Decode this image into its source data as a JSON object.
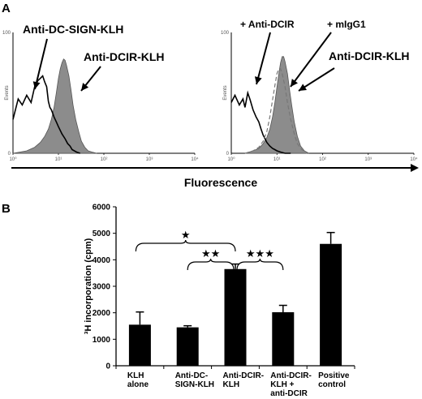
{
  "panel_a_letter": "A",
  "panel_b_letter": "B",
  "chart_data": [
    {
      "type": "area",
      "panel": "A-left",
      "ylabel": "Events",
      "xlabel": "",
      "ylim": [
        0,
        100
      ],
      "y_ticks": [
        "0",
        "100"
      ],
      "x_ticks": [
        "10⁰",
        "10¹",
        "10²",
        "10³",
        "10⁴"
      ],
      "x_tick_values": [
        1,
        10,
        100,
        1000,
        10000
      ],
      "xscale": "log",
      "series": [
        {
          "name": "Anti-DC-SIGN-KLH",
          "style": "outline",
          "x": [
            1,
            1.3,
            1.6,
            2.0,
            2.5,
            3.0,
            3.5,
            4.0,
            4.5,
            5.0,
            5.5,
            6.0,
            6.5,
            7.0,
            7.5,
            8.0,
            9.0,
            10,
            12,
            14,
            16,
            18,
            20,
            25,
            30
          ],
          "y": [
            28,
            45,
            40,
            48,
            42,
            55,
            60,
            62,
            64,
            59,
            55,
            43,
            38,
            36,
            33,
            30,
            26,
            22,
            16,
            12,
            8,
            6,
            3,
            1,
            0
          ]
        },
        {
          "name": "Anti-DCIR-KLH",
          "style": "filled",
          "x": [
            1,
            2,
            3,
            4,
            5,
            6,
            7,
            8,
            9,
            10,
            11,
            12,
            13,
            14,
            15,
            17,
            19,
            21,
            24,
            28,
            32,
            38,
            45,
            55,
            70
          ],
          "y": [
            0,
            2,
            5,
            9,
            14,
            20,
            28,
            38,
            50,
            62,
            70,
            75,
            78,
            77,
            73,
            64,
            52,
            40,
            28,
            18,
            10,
            5,
            2,
            1,
            0
          ]
        }
      ],
      "annotations": [
        "Anti-DC-SIGN-KLH",
        "Anti-DCIR-KLH"
      ]
    },
    {
      "type": "area",
      "panel": "A-right",
      "ylabel": "Events",
      "xlabel": "Fluorescence",
      "ylim": [
        0,
        100
      ],
      "y_ticks": [
        "0",
        "100"
      ],
      "x_ticks": [
        "10⁰",
        "10¹",
        "10²",
        "10³",
        "10⁴"
      ],
      "x_tick_values": [
        1,
        10,
        100,
        1000,
        10000
      ],
      "xscale": "log",
      "series": [
        {
          "name": "+ Anti-DCIR",
          "style": "outline",
          "x": [
            1,
            1.2,
            1.5,
            1.8,
            2.0,
            2.3,
            2.6,
            3.0,
            3.5,
            4.0,
            4.5,
            5.0,
            5.5,
            6.0,
            7.0,
            8.0,
            9.0,
            10,
            12,
            15,
            20
          ],
          "y": [
            42,
            48,
            40,
            45,
            38,
            50,
            44,
            36,
            30,
            26,
            20,
            15,
            12,
            9,
            6,
            4,
            3,
            2,
            1,
            0,
            0
          ]
        },
        {
          "name": "+ mIgG1",
          "style": "dashed",
          "x": [
            2,
            3,
            4,
            5,
            6,
            7,
            8,
            9,
            10,
            11,
            12,
            13,
            15,
            17,
            20,
            24,
            28,
            35,
            45
          ],
          "y": [
            0,
            2,
            5,
            10,
            18,
            30,
            44,
            56,
            66,
            70,
            70,
            66,
            55,
            42,
            28,
            16,
            8,
            3,
            0
          ]
        },
        {
          "name": "Anti-DCIR-KLH",
          "style": "filled",
          "x": [
            2,
            3,
            4,
            5,
            6,
            7,
            8,
            9,
            10,
            11,
            12,
            13,
            14,
            15,
            17,
            19,
            21,
            24,
            28,
            33,
            40,
            50
          ],
          "y": [
            0,
            2,
            4,
            8,
            13,
            20,
            30,
            42,
            55,
            66,
            75,
            80,
            80,
            76,
            66,
            52,
            40,
            26,
            14,
            6,
            2,
            0
          ]
        }
      ],
      "annotations": [
        "+ Anti-DCIR",
        "+ mIgG1",
        "Anti-DCIR-KLH"
      ]
    },
    {
      "type": "bar",
      "panel": "B",
      "ylabel": "³H incorporation (cpm)",
      "xlabel": "",
      "ylim": [
        0,
        6000
      ],
      "y_ticks": [
        "0",
        "1000",
        "2000",
        "3000",
        "4000",
        "5000",
        "6000"
      ],
      "y_tick_values": [
        0,
        1000,
        2000,
        3000,
        4000,
        5000,
        6000
      ],
      "categories": [
        [
          "KLH",
          "alone"
        ],
        [
          "Anti-DC-",
          "SIGN-KLH"
        ],
        [
          "Anti-DCIR-",
          "KLH"
        ],
        [
          "Anti-DCIR-",
          "KLH +",
          "anti-DCIR"
        ],
        [
          "Positive",
          "control"
        ]
      ],
      "values": [
        1550,
        1450,
        3650,
        2020,
        4600
      ],
      "errors": [
        480,
        60,
        190,
        260,
        430
      ],
      "significance": [
        {
          "from": 0,
          "to": 2,
          "label": "★"
        },
        {
          "from": 1,
          "to": 2,
          "label": "★★"
        },
        {
          "from": 2,
          "to": 3,
          "label": "★★★"
        }
      ]
    }
  ]
}
